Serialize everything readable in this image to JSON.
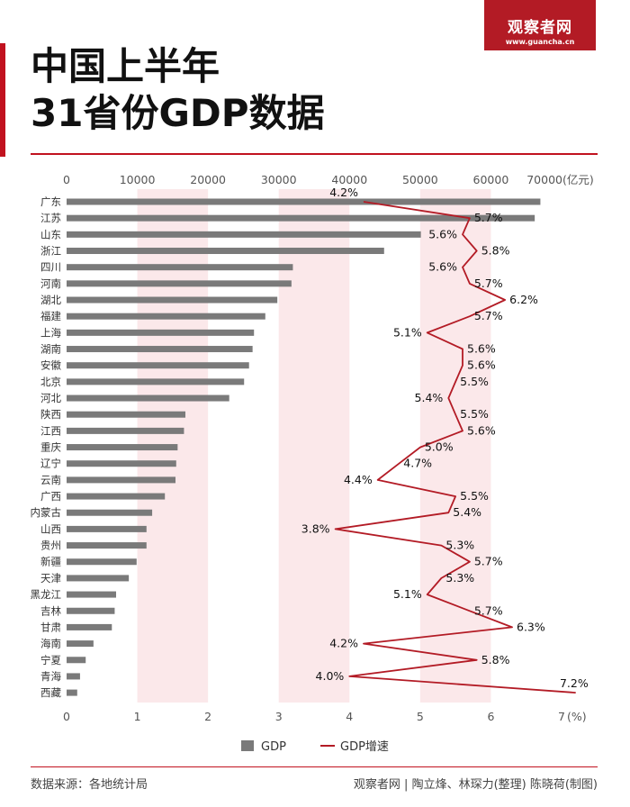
{
  "header": {
    "title_line1": "中国上半年",
    "title_line2": "31省份GDP数据",
    "logo_text": "观察者网",
    "logo_url": "www.guancha.cn"
  },
  "footer": {
    "source": "数据来源：各地统计局",
    "credits": "观察者网 | 陶立烽、林琛力(整理) 陈晓荷(制图)"
  },
  "colors": {
    "bar": "#7a7a7a",
    "line": "#b31b25",
    "band": "#fbe8ea",
    "accent": "#c1121f"
  },
  "chart_data": {
    "type": "bar",
    "orientation": "horizontal",
    "categories": [
      "广东",
      "江苏",
      "山东",
      "浙江",
      "四川",
      "河南",
      "湖北",
      "福建",
      "上海",
      "湖南",
      "安徽",
      "北京",
      "河北",
      "陕西",
      "江西",
      "重庆",
      "辽宁",
      "云南",
      "广西",
      "内蒙古",
      "山西",
      "贵州",
      "新疆",
      "天津",
      "黑龙江",
      "吉林",
      "甘肃",
      "海南",
      "宁夏",
      "青海",
      "西藏"
    ],
    "series": [
      {
        "name": "GDP",
        "type": "bar",
        "axis": "top",
        "values": [
          67000,
          66200,
          50100,
          44900,
          32000,
          31800,
          29800,
          28100,
          26500,
          26300,
          25800,
          25100,
          23000,
          16800,
          16600,
          15700,
          15500,
          15400,
          13900,
          12100,
          11300,
          11300,
          9900,
          8800,
          7000,
          6800,
          6400,
          3800,
          2700,
          1900,
          1500
        ]
      },
      {
        "name": "GDP增速",
        "type": "line",
        "axis": "bottom",
        "values": [
          4.2,
          5.7,
          5.6,
          5.8,
          5.6,
          5.7,
          6.2,
          5.7,
          5.1,
          5.6,
          5.6,
          5.5,
          5.4,
          5.5,
          5.6,
          5.0,
          4.7,
          4.4,
          5.5,
          5.4,
          3.8,
          5.3,
          5.7,
          5.3,
          5.1,
          5.7,
          6.3,
          4.2,
          5.8,
          4.0,
          7.2
        ],
        "labels": [
          "4.2%",
          "5.7%",
          "5.6%",
          "5.8%",
          "5.6%",
          "5.7%",
          "6.2%",
          "5.7%",
          "5.1%",
          "5.6%",
          "5.6%",
          "5.5%",
          "5.4%",
          "5.5%",
          "5.6%",
          "5.0%",
          "4.7%",
          "4.4%",
          "5.5%",
          "5.4%",
          "3.8%",
          "5.3%",
          "5.7%",
          "5.3%",
          "5.1%",
          "5.7%",
          "6.3%",
          "4.2%",
          "5.8%",
          "4.0%",
          "7.2%"
        ]
      }
    ],
    "top_axis": {
      "range": [
        0,
        70000
      ],
      "ticks": [
        "0",
        "10000",
        "20000",
        "30000",
        "40000",
        "50000",
        "60000",
        "70000"
      ],
      "unit": "(亿元)"
    },
    "bottom_axis": {
      "range": [
        0,
        7
      ],
      "ticks": [
        "0",
        "1",
        "2",
        "3",
        "4",
        "5",
        "6",
        "7"
      ],
      "unit": "(%)"
    },
    "legend": {
      "position": "bottom",
      "items": [
        "GDP",
        "GDP增速"
      ]
    }
  }
}
